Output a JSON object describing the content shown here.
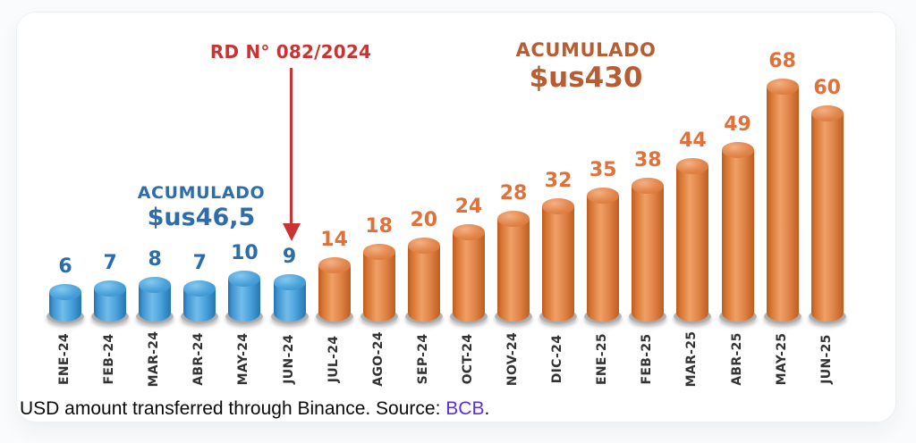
{
  "chart_data": {
    "type": "bar",
    "title": "",
    "xlabel": "",
    "ylabel": "",
    "ylim": [
      0,
      70
    ],
    "grid": false,
    "legend": false,
    "categories": [
      "ENE-24",
      "FEB-24",
      "MAR-24",
      "ABR-24",
      "MAY-24",
      "JUN-24",
      "JUL-24",
      "AGO-24",
      "SEP-24",
      "OCT-24",
      "NOV-24",
      "DIC-24",
      "ENE-25",
      "FEB-25",
      "MAR-25",
      "ABR-25",
      "MAY-25",
      "JUN-25"
    ],
    "values": [
      6,
      7,
      8,
      7,
      10,
      9,
      14,
      18,
      20,
      24,
      28,
      32,
      35,
      38,
      44,
      49,
      68,
      60
    ],
    "groups": [
      "blue",
      "blue",
      "blue",
      "blue",
      "blue",
      "blue",
      "orange",
      "orange",
      "orange",
      "orange",
      "orange",
      "orange",
      "orange",
      "orange",
      "orange",
      "orange",
      "orange",
      "orange"
    ],
    "group_colors": {
      "blue": "#2e86c8",
      "orange": "#dd7a3e"
    },
    "value_label_colors": {
      "blue": "#2b6ca9",
      "orange": "#e0713a"
    }
  },
  "annotations": {
    "decree": {
      "text": "RD N° 082/2024",
      "color": "#c83434",
      "target_category": "JUN-24"
    },
    "accumulated_blue": {
      "label": "ACUMULADO",
      "value": "$us46,5",
      "color": "#2e6dab"
    },
    "accumulated_orange": {
      "label": "ACUMULADO",
      "value": "$us430",
      "color": "#b85c31"
    }
  },
  "caption": {
    "text": "USD amount transferred through Binance. Source: ",
    "link": "BCB",
    "suffix": ".",
    "link_color": "#5b2ee1"
  }
}
